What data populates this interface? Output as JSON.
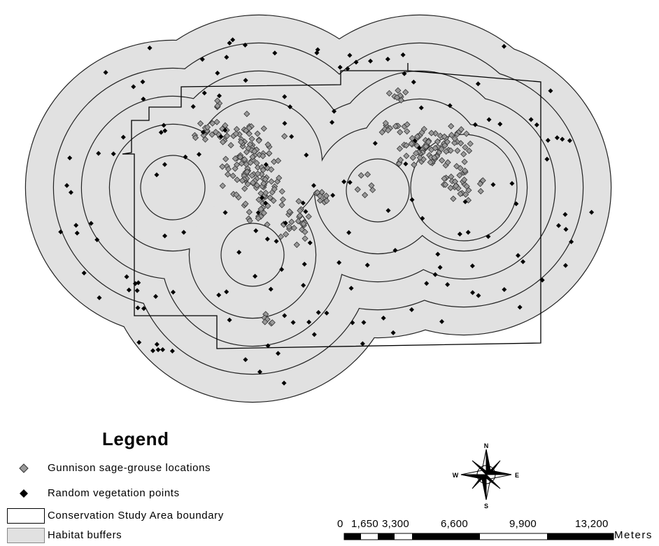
{
  "legend": {
    "title": "Legend",
    "items": [
      {
        "label": "Gunnison sage-grouse locations",
        "symbol": "grey-diamond"
      },
      {
        "label": "Random vegetation points",
        "symbol": "black-diamond"
      },
      {
        "label": "Conservation Study Area boundary",
        "symbol": "outline-box"
      },
      {
        "label": "Habitat buffers",
        "symbol": "filled-box"
      }
    ]
  },
  "north_arrow": {
    "n": "N",
    "s": "S",
    "e": "E",
    "w": "W"
  },
  "scale_bar": {
    "ticks": [
      "0",
      "1,650",
      "3,300",
      "6,600",
      "9,900",
      "13,200"
    ],
    "unit": "Meters"
  },
  "colors": {
    "buffer_fill": "#e1e1e1",
    "buffer_line": "#222222",
    "grouse_point": "#9a9a9a",
    "random_point": "#000000",
    "boundary": "#000000"
  }
}
